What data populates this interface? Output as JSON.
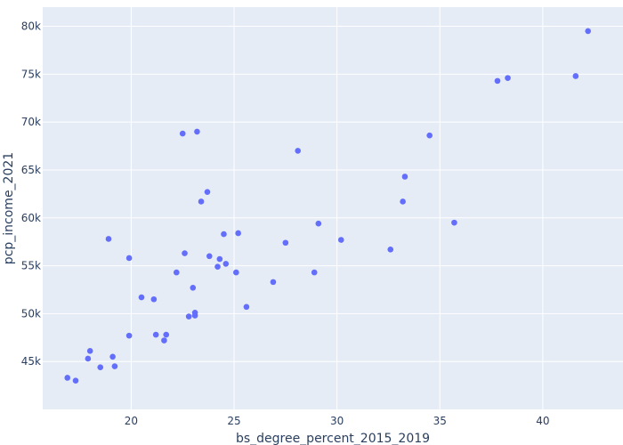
{
  "chart_data": {
    "type": "scatter",
    "xlabel": "bs_degree_percent_2015_2019",
    "ylabel": "pcp_income_2021",
    "xlim": [
      15.7,
      43.9
    ],
    "ylim": [
      40000,
      82000
    ],
    "x_ticks": [
      20,
      25,
      30,
      35,
      40
    ],
    "y_ticks": [
      45000,
      50000,
      55000,
      60000,
      65000,
      70000,
      75000,
      80000
    ],
    "x_tick_labels": [
      "20",
      "25",
      "30",
      "35",
      "40"
    ],
    "y_tick_labels": [
      "45k",
      "50k",
      "55k",
      "60k",
      "65k",
      "70k",
      "75k",
      "80k"
    ],
    "grid": true,
    "colors": {
      "marker": "#636efa",
      "plot_bg": "#e5ecf6",
      "grid": "#ffffff",
      "text": "#2a3f5f"
    },
    "series": [
      {
        "x": [
          16.9,
          17.3,
          17.9,
          18.0,
          18.5,
          18.9,
          19.1,
          19.2,
          19.9,
          19.9,
          20.5,
          21.1,
          21.2,
          21.6,
          21.7,
          22.2,
          22.5,
          22.6,
          22.8,
          23.0,
          23.1,
          23.1,
          23.2,
          23.4,
          23.7,
          23.8,
          24.2,
          24.3,
          24.5,
          24.6,
          25.1,
          25.2,
          25.6,
          26.9,
          27.5,
          28.1,
          28.9,
          29.1,
          30.2,
          32.6,
          33.2,
          33.3,
          34.5,
          35.7,
          37.8,
          38.3,
          41.6,
          42.2
        ],
        "y": [
          43300,
          43000,
          45300,
          46100,
          44400,
          57800,
          45500,
          44500,
          47700,
          55800,
          51700,
          51500,
          47800,
          47200,
          47800,
          54300,
          68800,
          56300,
          49700,
          52700,
          49800,
          50100,
          69000,
          61700,
          62700,
          56000,
          54900,
          55700,
          58300,
          55200,
          54300,
          58400,
          50700,
          53300,
          57400,
          67000,
          54300,
          59400,
          57700,
          56700,
          61700,
          64300,
          68600,
          59500,
          74300,
          74600,
          74800,
          79500
        ]
      }
    ]
  }
}
